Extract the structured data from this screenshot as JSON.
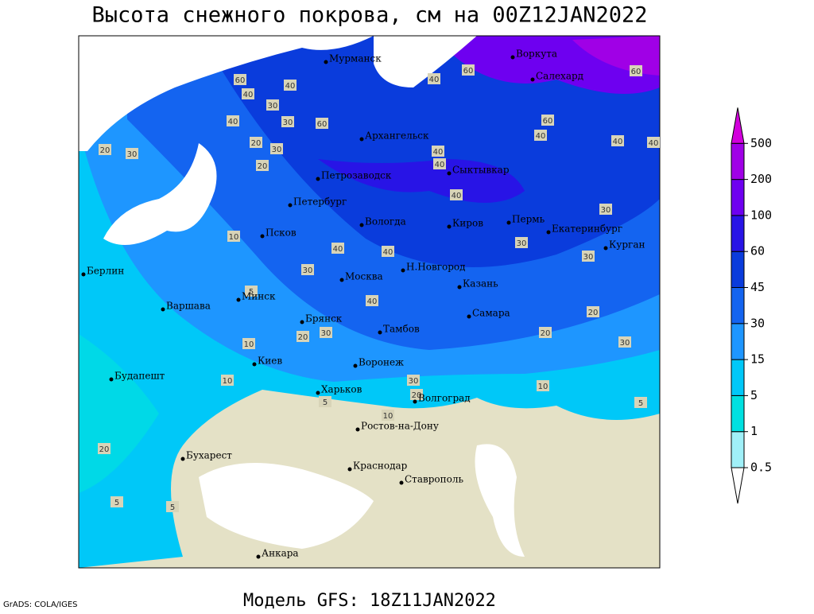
{
  "header": {
    "title": "Высота снежного покрова, см на 00Z12JAN2022"
  },
  "footer": {
    "model": "Модель GFS: 18Z11JAN2022",
    "credit": "GrADS: COLA/IGES"
  },
  "colorbar": {
    "levels": [
      0.5,
      1,
      5,
      15,
      30,
      45,
      60,
      100,
      200,
      500
    ],
    "colors": [
      "#a0f0f8",
      "#00e0e0",
      "#00c8f8",
      "#1e96ff",
      "#1464f0",
      "#0a3cdc",
      "#2814e6",
      "#6e00f0",
      "#a000e6",
      "#d200dc"
    ]
  },
  "cities": [
    "Мурманск",
    "Воркута",
    "Салехард",
    "Архангельск",
    "Сыктывкар",
    "Петрозаводск",
    "Петербург",
    "Вологда",
    "Киров",
    "Пермь",
    "Екатеринбург",
    "Курган",
    "Псков",
    "Москва",
    "Н.Новгород",
    "Казань",
    "Берлин",
    "Варшава",
    "Минск",
    "Брянск",
    "Тамбов",
    "Самара",
    "Киев",
    "Воронеж",
    "Харьков",
    "Волгоград",
    "Будапешт",
    "Ростов-на-Дону",
    "Бухарест",
    "Краснодар",
    "Ставрополь",
    "Анкара"
  ],
  "contour_labels": [
    60,
    40,
    40,
    30,
    40,
    30,
    60,
    20,
    30,
    20,
    20,
    30,
    40,
    60,
    60,
    60,
    40,
    40,
    40,
    40,
    40,
    40,
    30,
    30,
    30,
    40,
    40,
    30,
    10,
    5,
    10,
    20,
    30,
    40,
    30,
    20,
    10,
    10,
    5,
    20,
    20,
    30,
    5,
    10,
    20,
    5,
    5
  ]
}
